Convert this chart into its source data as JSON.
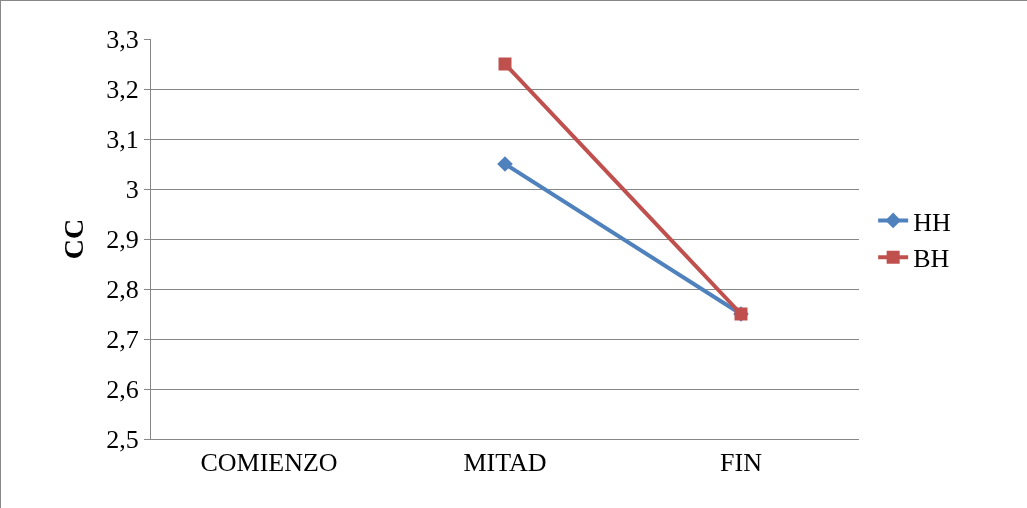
{
  "chart_data": {
    "type": "line",
    "ylabel": "CC",
    "categories": [
      "COMIENZO",
      "MITAD",
      "FIN"
    ],
    "series": [
      {
        "name": "HH",
        "color": "#4f81bd",
        "marker": "diamond",
        "values": [
          null,
          3.05,
          2.75
        ]
      },
      {
        "name": "BH",
        "color": "#c0504d",
        "marker": "square",
        "values": [
          null,
          3.25,
          2.75
        ]
      }
    ],
    "ylim": [
      2.5,
      3.3
    ],
    "yticks": [
      {
        "value": 2.5,
        "label": "2,5"
      },
      {
        "value": 2.6,
        "label": "2,6"
      },
      {
        "value": 2.7,
        "label": "2,7"
      },
      {
        "value": 2.8,
        "label": "2,8"
      },
      {
        "value": 2.9,
        "label": "2,9"
      },
      3,
      {
        "value": 3.1,
        "label": "3,1"
      },
      {
        "value": 3.2,
        "label": "3,2"
      },
      {
        "value": 3.3,
        "label": "3,3"
      }
    ],
    "grid": "y",
    "legend": "right",
    "line_style": "solid"
  }
}
